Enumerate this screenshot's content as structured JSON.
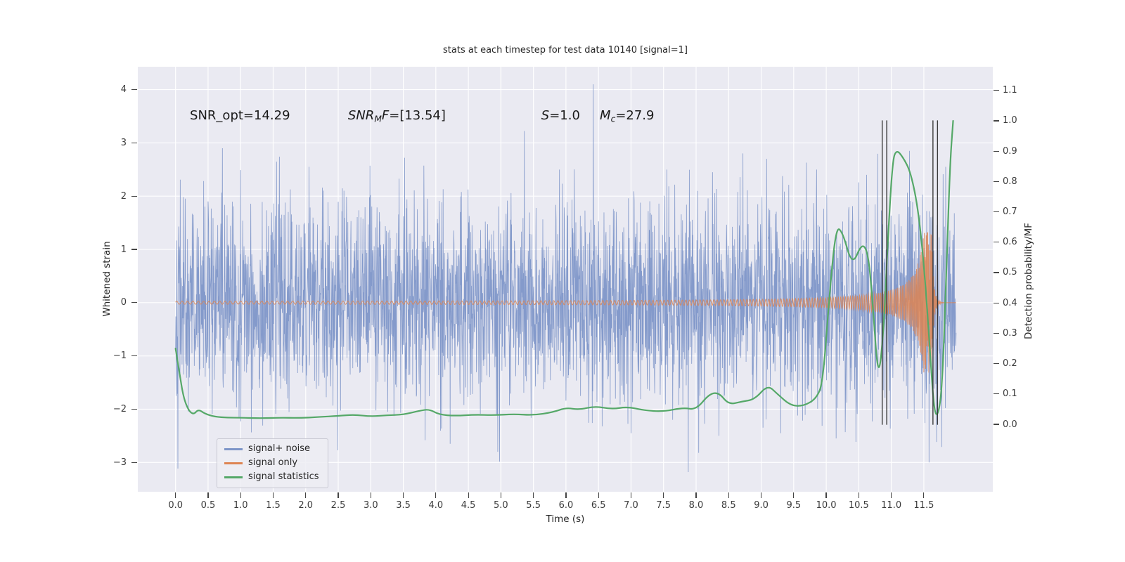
{
  "chart_data": {
    "type": "line",
    "title": "stats at each timestep for test data 10140 [signal=1]",
    "xlabel": "Time (s)",
    "ylabel_left": "Whitened strain",
    "ylabel_right": "Detection probability/MF",
    "xlim": [
      -0.58,
      12.56
    ],
    "ylim_left": [
      -3.55,
      4.43
    ],
    "ylim_right": [
      -0.222,
      1.178
    ],
    "grid_color": "#ffffff",
    "x_ticks": [
      0,
      0.5,
      1,
      1.5,
      2,
      2.5,
      3,
      3.5,
      4,
      4.5,
      5,
      5.5,
      6,
      6.5,
      7,
      7.5,
      8,
      8.5,
      9,
      9.5,
      10,
      10.5,
      11,
      11.5
    ],
    "x_tick_labels": [
      "0.0",
      "0.5",
      "1.0",
      "1.5",
      "2.0",
      "2.5",
      "3.0",
      "3.5",
      "4.0",
      "4.5",
      "5.0",
      "5.5",
      "6.0",
      "6.5",
      "7.0",
      "7.5",
      "8.0",
      "8.5",
      "9.0",
      "9.5",
      "10.0",
      "10.5",
      "11.0",
      "11.5"
    ],
    "y_ticks_left": [
      4,
      3,
      2,
      1,
      0,
      -1,
      -2,
      -3
    ],
    "y_tick_labels_left": [
      "4",
      "3",
      "2",
      "1",
      "0",
      "−1",
      "−2",
      "−3"
    ],
    "y_ticks_right": [
      1.1,
      1.0,
      0.9,
      0.8,
      0.7,
      0.6,
      0.5,
      0.4,
      0.3,
      0.2,
      0.1,
      0.0
    ],
    "y_tick_labels_right": [
      "1.1",
      "1.0",
      "0.9",
      "0.8",
      "0.7",
      "0.6",
      "0.5",
      "0.4",
      "0.3",
      "0.2",
      "0.1",
      "0.0"
    ],
    "series": [
      {
        "name": "signal+ noise",
        "kind": "noise",
        "axis": "left",
        "color": "#7e96c8",
        "alpha": 0.95,
        "sigma": 0.95,
        "seed": 42,
        "n": 3000,
        "t_start": 0,
        "t_end": 12.0,
        "spikes": [
          {
            "t": 0.72,
            "v": 2.9
          },
          {
            "t": 2.05,
            "v": 2.55
          },
          {
            "t": 3.52,
            "v": 2.72
          },
          {
            "t": 5.9,
            "v": 2.5
          },
          {
            "t": 6.42,
            "v": 4.1
          },
          {
            "t": 7.55,
            "v": 2.5
          },
          {
            "t": 8.25,
            "v": 2.45
          },
          {
            "t": 9.85,
            "v": 2.5
          },
          {
            "t": 10.62,
            "v": 2.4
          },
          {
            "t": 11.28,
            "v": 2.85
          },
          {
            "t": 4.22,
            "v": -2.65
          },
          {
            "t": 4.95,
            "v": -2.8
          },
          {
            "t": 7.0,
            "v": -2.45
          },
          {
            "t": 7.88,
            "v": -3.18
          },
          {
            "t": 8.35,
            "v": -2.5
          },
          {
            "t": 9.3,
            "v": -2.45
          },
          {
            "t": 10.15,
            "v": -2.55
          },
          {
            "t": 11.58,
            "v": -3.0
          }
        ]
      },
      {
        "name": "signal only",
        "kind": "chirp",
        "axis": "left",
        "color": "#dd8452",
        "alpha": 0.85,
        "n": 3000,
        "t_start": 0,
        "t_end": 12.0,
        "t_merger": 11.62,
        "amp_base": 0.02,
        "amp_coeff": 0.13,
        "amp_exp": -1.1,
        "amp_cap": 1.32,
        "freq_coeff": 30,
        "freq_exp": -0.375,
        "freq_max": 115,
        "ringdown_tau": 0.03,
        "ringdown_freq": 150
      },
      {
        "name": "signal statistics",
        "kind": "curve",
        "axis": "right",
        "color": "#55a868",
        "points": [
          [
            0.0,
            0.25
          ],
          [
            0.06,
            0.17
          ],
          [
            0.12,
            0.09
          ],
          [
            0.2,
            0.045
          ],
          [
            0.28,
            0.032
          ],
          [
            0.35,
            0.05
          ],
          [
            0.45,
            0.035
          ],
          [
            0.6,
            0.025
          ],
          [
            0.8,
            0.022
          ],
          [
            1.0,
            0.022
          ],
          [
            1.3,
            0.02
          ],
          [
            1.6,
            0.022
          ],
          [
            1.9,
            0.021
          ],
          [
            2.2,
            0.024
          ],
          [
            2.5,
            0.028
          ],
          [
            2.75,
            0.032
          ],
          [
            3.0,
            0.026
          ],
          [
            3.25,
            0.03
          ],
          [
            3.5,
            0.032
          ],
          [
            3.75,
            0.045
          ],
          [
            3.9,
            0.05
          ],
          [
            4.05,
            0.032
          ],
          [
            4.3,
            0.028
          ],
          [
            4.6,
            0.032
          ],
          [
            4.9,
            0.03
          ],
          [
            5.2,
            0.034
          ],
          [
            5.5,
            0.03
          ],
          [
            5.8,
            0.04
          ],
          [
            6.0,
            0.055
          ],
          [
            6.2,
            0.048
          ],
          [
            6.45,
            0.06
          ],
          [
            6.7,
            0.05
          ],
          [
            6.95,
            0.058
          ],
          [
            7.2,
            0.046
          ],
          [
            7.5,
            0.042
          ],
          [
            7.8,
            0.055
          ],
          [
            8.0,
            0.048
          ],
          [
            8.2,
            0.1
          ],
          [
            8.35,
            0.105
          ],
          [
            8.5,
            0.065
          ],
          [
            8.7,
            0.075
          ],
          [
            8.9,
            0.082
          ],
          [
            9.1,
            0.13
          ],
          [
            9.25,
            0.1
          ],
          [
            9.45,
            0.062
          ],
          [
            9.65,
            0.06
          ],
          [
            9.85,
            0.085
          ],
          [
            9.95,
            0.14
          ],
          [
            10.05,
            0.43
          ],
          [
            10.15,
            0.65
          ],
          [
            10.25,
            0.635
          ],
          [
            10.4,
            0.52
          ],
          [
            10.55,
            0.6
          ],
          [
            10.65,
            0.56
          ],
          [
            10.72,
            0.38
          ],
          [
            10.8,
            0.14
          ],
          [
            10.88,
            0.3
          ],
          [
            10.95,
            0.62
          ],
          [
            11.02,
            0.87
          ],
          [
            11.08,
            0.905
          ],
          [
            11.18,
            0.88
          ],
          [
            11.3,
            0.83
          ],
          [
            11.42,
            0.7
          ],
          [
            11.52,
            0.48
          ],
          [
            11.6,
            0.22
          ],
          [
            11.66,
            0.04
          ],
          [
            11.72,
            0.028
          ],
          [
            11.78,
            0.12
          ],
          [
            11.84,
            0.45
          ],
          [
            11.9,
            0.85
          ],
          [
            11.95,
            1.0
          ]
        ]
      }
    ],
    "vlines": {
      "color": "#3a3a3a",
      "axis": "right",
      "span": [
        0.0,
        1.0
      ],
      "x": [
        10.86,
        10.93,
        11.64,
        11.71
      ]
    },
    "annotations": [
      {
        "x": 0.22,
        "y": 3.45,
        "segments": [
          {
            "text": "SNR_opt=14.29"
          }
        ]
      },
      {
        "x": 2.65,
        "y": 3.45,
        "segments": [
          {
            "text": "SNR",
            "style": "it"
          },
          {
            "text": "M",
            "style": "sub"
          },
          {
            "text": "F",
            "style": "it"
          },
          {
            "text": "=[13.54]"
          }
        ]
      },
      {
        "x": 5.62,
        "y": 3.45,
        "segments": [
          {
            "text": "S",
            "style": "it"
          },
          {
            "text": "=1.0"
          }
        ]
      },
      {
        "x": 6.52,
        "y": 3.45,
        "segments": [
          {
            "text": "M",
            "style": "it"
          },
          {
            "text": "c",
            "style": "sub"
          },
          {
            "text": "=27.9"
          }
        ]
      }
    ]
  }
}
